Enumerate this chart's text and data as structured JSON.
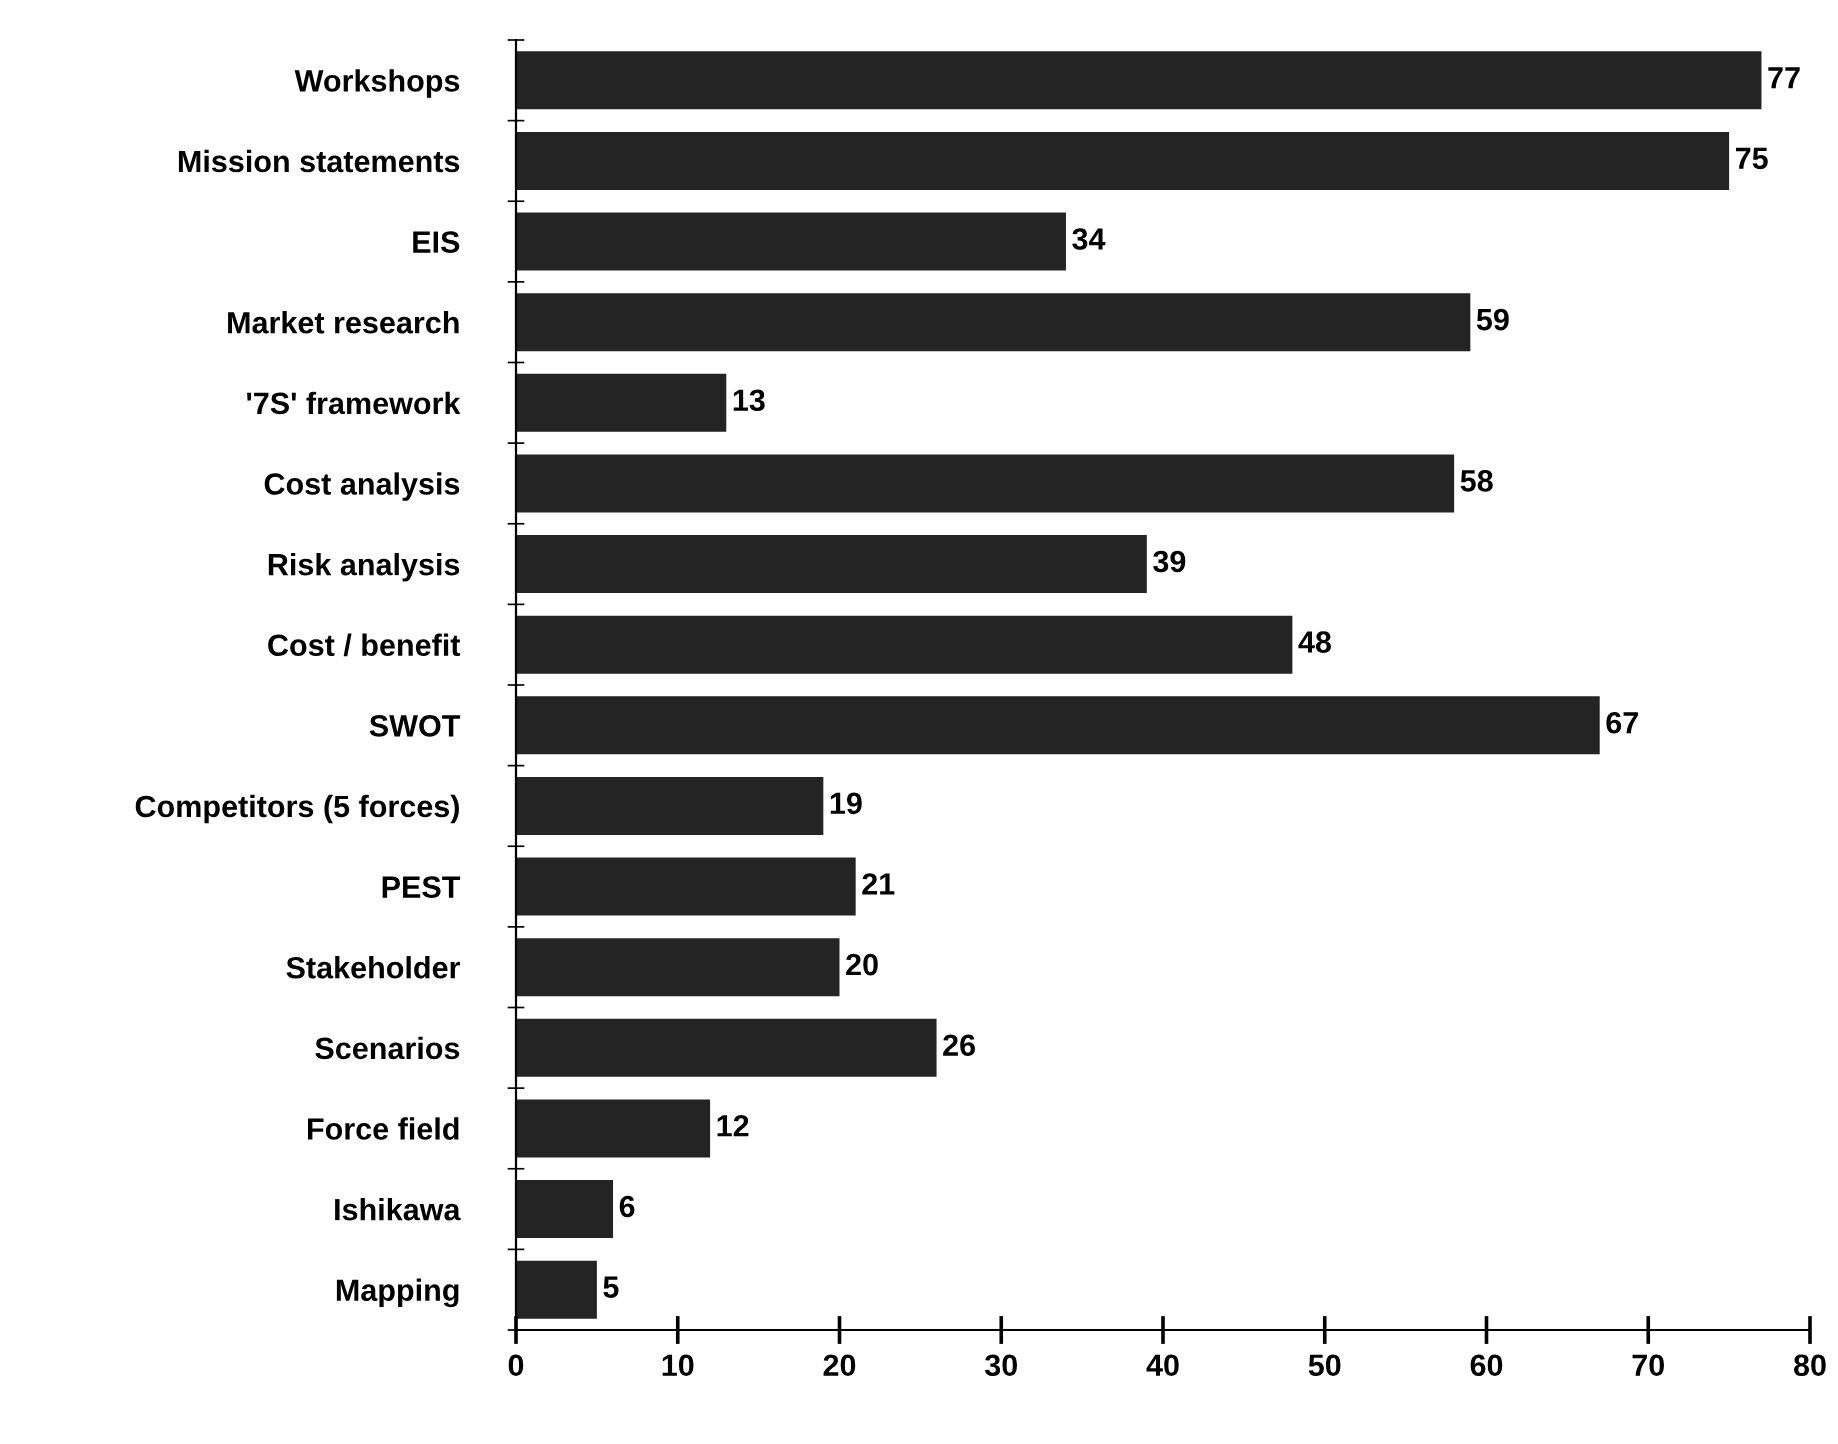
{
  "chart_data": {
    "type": "bar",
    "orientation": "horizontal",
    "categories": [
      "Workshops",
      "Mission statements",
      "EIS",
      "Market research",
      "'7S' framework",
      "Cost analysis",
      "Risk analysis",
      "Cost / benefit",
      "SWOT",
      "Competitors (5 forces)",
      "PEST",
      "Stakeholder",
      "Scenarios",
      "Force field",
      "Ishikawa",
      "Mapping"
    ],
    "values": [
      77,
      75,
      34,
      59,
      13,
      58,
      39,
      48,
      67,
      19,
      21,
      20,
      26,
      12,
      6,
      5
    ],
    "color": "#242424",
    "xlim": [
      0,
      80
    ],
    "xticks": [
      0,
      10,
      20,
      30,
      40,
      50,
      60,
      70,
      80
    ],
    "data_labels": true,
    "grid": false,
    "legend": false
  }
}
